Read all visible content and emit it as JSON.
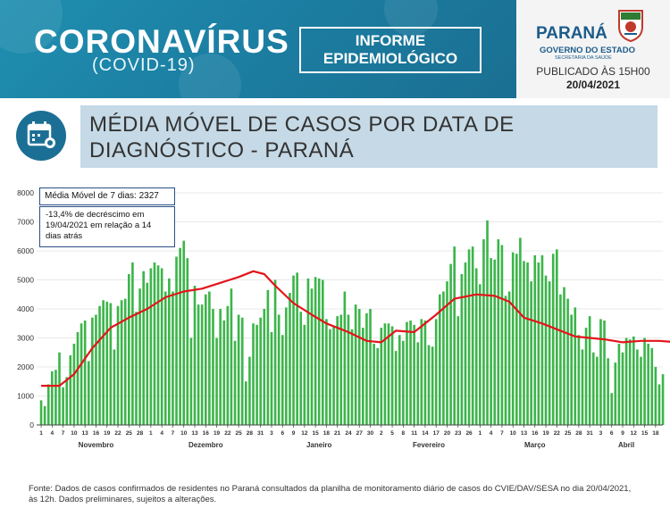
{
  "header": {
    "brand_title": "CORONAVÍRUS",
    "brand_subtitle": "(COVID-19)",
    "report_line1": "INFORME",
    "report_line2": "EPIDEMIOLÓGICO",
    "gov_name": "PARANÁ",
    "gov_state": "GOVERNO DO ESTADO",
    "gov_secretariat": "SECRETARIA DA SAÚDE",
    "published": "PUBLICADO ÀS 15H00",
    "published_date": "20/04/2021"
  },
  "title": {
    "line1": "MÉDIA MÓVEL DE CASOS POR DATA DE",
    "line2": "DIAGNÓSTICO - PARANÁ"
  },
  "annotations": {
    "moving_avg": "Média Móvel de 7 dias: 2327",
    "decrease_line1": "-13,4% de decréscimo em",
    "decrease_line2": "19/04/2021  em relação a 14",
    "decrease_line3": "dias atrás"
  },
  "footer": {
    "line1": "Fonte: Dados de casos confirmados de residentes no Paraná consultados da planilha de monitoramento diário de casos do CVIE/DAV/SESA no dia 20/04/2021,",
    "line2": "às 12h. Dados preliminares, sujeitos a alterações."
  },
  "colors": {
    "bars": "#3cb54a",
    "moving_average": "#e3141b",
    "banner": "#1f86ab",
    "title_box": "#c5d9e6"
  },
  "chart_data": {
    "type": "bar",
    "ylim": [
      0,
      8000
    ],
    "yticks": [
      0,
      1000,
      2000,
      3000,
      4000,
      5000,
      6000,
      7000,
      8000
    ],
    "start_date": "2020-11-01",
    "end_date": "2021-04-19",
    "month_labels": [
      "Novembro",
      "Dezembro",
      "Janeiro",
      "Fevereiro",
      "Março",
      "Abril"
    ],
    "month_label_dates": [
      "2020-11-16",
      "2020-12-16",
      "2021-01-16",
      "2021-02-15",
      "2021-03-16",
      "2021-04-10"
    ],
    "day_tick_labels": [
      "1",
      "4",
      "7",
      "10",
      "13",
      "16",
      "19",
      "22",
      "25",
      "28",
      "1",
      "4",
      "7",
      "10",
      "13",
      "16",
      "19",
      "22",
      "25",
      "28",
      "31",
      "3",
      "6",
      "9",
      "12",
      "15",
      "18",
      "21",
      "24",
      "27",
      "30",
      "2",
      "5",
      "8",
      "11",
      "14",
      "17",
      "20",
      "23",
      "26",
      "1",
      "4",
      "7",
      "10",
      "13",
      "16",
      "19",
      "22",
      "25",
      "28",
      "31",
      "3",
      "6",
      "9",
      "12",
      "15",
      "18"
    ],
    "series": [
      {
        "name": "Casos",
        "kind": "bar",
        "values": [
          850,
          650,
          1400,
          1850,
          1900,
          2500,
          1300,
          1650,
          2400,
          2800,
          3200,
          3500,
          3600,
          2200,
          3700,
          3800,
          4100,
          4300,
          4250,
          4200,
          2600,
          4100,
          4300,
          4350,
          5200,
          5600,
          3900,
          4700,
          5300,
          4900,
          5400,
          5600,
          5500,
          5400,
          4600,
          5050,
          4600,
          5800,
          6100,
          6350,
          5750,
          3000,
          4800,
          4150,
          4150,
          4500,
          4600,
          4000,
          3000,
          4000,
          3600,
          4100,
          4700,
          2900,
          3800,
          3700,
          1500,
          2350,
          3500,
          3450,
          3700,
          4000,
          4650,
          3200,
          5000,
          3800,
          3100,
          4050,
          4550,
          5150,
          5250,
          3900,
          3450,
          5050,
          4700,
          5100,
          5050,
          5000,
          3650,
          3300,
          3400,
          3750,
          3800,
          4600,
          3800,
          3300,
          4150,
          4000,
          3350,
          3850,
          4000,
          2800,
          2650,
          3350,
          3500,
          3500,
          3400,
          2550,
          3100,
          2900,
          3550,
          3600,
          3450,
          2850,
          3650,
          3600,
          2750,
          2700,
          3650,
          4500,
          4600,
          4950,
          5550,
          6150,
          3750,
          5200,
          5600,
          6050,
          6150,
          5400,
          4850,
          6400,
          7050,
          5750,
          5700,
          6400,
          6200,
          4450,
          4600,
          5950,
          5900,
          6450,
          5650,
          5600,
          4950,
          5850,
          5600,
          5850,
          5150,
          4950,
          5900,
          6050,
          4500,
          4750,
          4350,
          3800,
          4050,
          3100,
          2600,
          3350,
          3750,
          2500,
          2350,
          3650,
          3600,
          2300,
          1100,
          2150,
          2800,
          2500,
          3000,
          2950,
          3050,
          2600,
          2350,
          3000,
          2800,
          2650,
          2000,
          1400,
          1750
        ]
      },
      {
        "name": "Média Móvel de 7 dias",
        "kind": "line",
        "points": [
          [
            0,
            1350
          ],
          [
            5,
            1350
          ],
          [
            9,
            1750
          ],
          [
            14,
            2650
          ],
          [
            19,
            3350
          ],
          [
            24,
            3700
          ],
          [
            29,
            4000
          ],
          [
            34,
            4400
          ],
          [
            39,
            4600
          ],
          [
            44,
            4700
          ],
          [
            49,
            4900
          ],
          [
            54,
            5100
          ],
          [
            58,
            5300
          ],
          [
            61,
            5200
          ],
          [
            64,
            4800
          ],
          [
            69,
            4200
          ],
          [
            74,
            3800
          ],
          [
            78,
            3500
          ],
          [
            84,
            3200
          ],
          [
            89,
            2900
          ],
          [
            93,
            2850
          ],
          [
            97,
            3250
          ],
          [
            102,
            3200
          ],
          [
            108,
            3800
          ],
          [
            113,
            4350
          ],
          [
            119,
            4500
          ],
          [
            124,
            4450
          ],
          [
            128,
            4250
          ],
          [
            132,
            3700
          ],
          [
            137,
            3500
          ],
          [
            141,
            3300
          ],
          [
            146,
            3050
          ],
          [
            150,
            3000
          ],
          [
            154,
            2950
          ],
          [
            159,
            2850
          ],
          [
            164,
            2900
          ],
          [
            169,
            2900
          ],
          [
            174,
            2850
          ],
          [
            179,
            3000
          ],
          [
            184,
            3700
          ],
          [
            189,
            4500
          ],
          [
            194,
            4900
          ],
          [
            199,
            5100
          ],
          [
            204,
            5350
          ],
          [
            209,
            5500
          ],
          [
            214,
            5550
          ],
          [
            219,
            5400
          ],
          [
            224,
            5250
          ],
          [
            229,
            5150
          ],
          [
            234,
            5150
          ],
          [
            239,
            4800
          ],
          [
            244,
            4200
          ],
          [
            249,
            3700
          ],
          [
            254,
            3000
          ],
          [
            259,
            2650
          ],
          [
            262,
            2450
          ],
          [
            266,
            2650
          ],
          [
            270,
            2750
          ],
          [
            274,
            2700
          ],
          [
            278,
            2600
          ],
          [
            280,
            2300
          ]
        ]
      }
    ]
  }
}
